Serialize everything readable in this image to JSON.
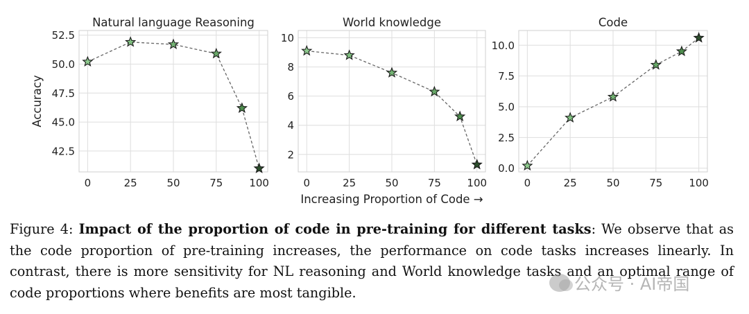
{
  "chart_data": [
    {
      "type": "line",
      "title": "Natural language Reasoning",
      "ylabel": "Accuracy",
      "xlabel": "",
      "x": [
        0,
        25,
        50,
        75,
        90,
        100
      ],
      "values": [
        50.2,
        51.9,
        51.7,
        50.9,
        46.2,
        41.0
      ],
      "xlim": [
        -5,
        105
      ],
      "ylim": [
        40.7,
        52.9
      ],
      "xticks": [
        0,
        25,
        50,
        75,
        100
      ],
      "yticks": [
        42.5,
        45.0,
        47.5,
        50.0,
        52.5
      ],
      "ytick_labels": [
        "42.5",
        "45.0",
        "47.5",
        "50.0",
        "52.5"
      ],
      "marker_colors": [
        "#8dc98d",
        "#80bf80",
        "#74b474",
        "#67a867",
        "#4f8f4f",
        "#2d4f2d"
      ]
    },
    {
      "type": "line",
      "title": "World knowledge",
      "ylabel": "",
      "xlabel": "Increasing Proportion of Code →",
      "x": [
        0,
        25,
        50,
        75,
        90,
        100
      ],
      "values": [
        9.1,
        8.8,
        7.6,
        6.3,
        4.6,
        1.3
      ],
      "xlim": [
        -5,
        105
      ],
      "ylim": [
        0.8,
        10.5
      ],
      "xticks": [
        0,
        25,
        50,
        75,
        100
      ],
      "yticks": [
        2,
        4,
        6,
        8,
        10
      ],
      "ytick_labels": [
        "2",
        "4",
        "6",
        "8",
        "10"
      ],
      "marker_colors": [
        "#8dc98d",
        "#80bf80",
        "#74b474",
        "#67a867",
        "#4f8f4f",
        "#2d4f2d"
      ]
    },
    {
      "type": "line",
      "title": "Code",
      "ylabel": "",
      "xlabel": "",
      "x": [
        0,
        25,
        50,
        75,
        90,
        100
      ],
      "values": [
        0.2,
        4.1,
        5.8,
        8.4,
        9.5,
        10.6
      ],
      "xlim": [
        -5,
        105
      ],
      "ylim": [
        -0.3,
        11.2
      ],
      "xticks": [
        0,
        25,
        50,
        75,
        100
      ],
      "yticks": [
        0.0,
        2.5,
        5.0,
        7.5,
        10.0
      ],
      "ytick_labels": [
        "0.0",
        "2.5",
        "5.0",
        "7.5",
        "10.0"
      ],
      "marker_colors": [
        "#8dc98d",
        "#80bf80",
        "#74b474",
        "#67a867",
        "#4f8f4f",
        "#2d4f2d"
      ]
    }
  ],
  "caption": {
    "label": "Figure 4:",
    "bold": "Impact of the proportion of code in pre-training for different tasks",
    "text": ": We observe that as the code proportion of pre-training increases, the performance on code tasks increases linearly. In contrast, there is more sensitivity for NL reasoning and World knowledge tasks and an optimal range of code proportions where benefits are most tangible."
  },
  "watermark": "公众号 · AI帝国"
}
